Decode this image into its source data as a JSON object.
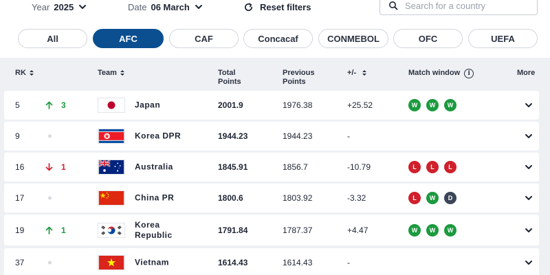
{
  "filters": {
    "year_label": "Year",
    "year_value": "2025",
    "date_label": "Date",
    "date_value": "06 March",
    "reset_label": "Reset filters",
    "search_placeholder": "Search for a country"
  },
  "tabs": [
    {
      "label": "All",
      "active": false
    },
    {
      "label": "AFC",
      "active": true
    },
    {
      "label": "CAF",
      "active": false
    },
    {
      "label": "Concacaf",
      "active": false
    },
    {
      "label": "CONMEBOL",
      "active": false
    },
    {
      "label": "OFC",
      "active": false
    },
    {
      "label": "UEFA",
      "active": false
    }
  ],
  "columns": {
    "rank": "RK",
    "team": "Team",
    "total_1": "Total",
    "total_2": "Points",
    "prev_1": "Previous",
    "prev_2": "Points",
    "diff": "+/-",
    "match_window": "Match window",
    "more": "More"
  },
  "rows": [
    {
      "rank": "5",
      "move_dir": "up",
      "move": "3",
      "flag": "japan",
      "team": "Japan",
      "total": "2001.9",
      "previous": "1976.38",
      "diff": "+25.52",
      "results": [
        "W",
        "W",
        "W"
      ]
    },
    {
      "rank": "9",
      "move_dir": "none",
      "move": "",
      "flag": "korea-dpr",
      "team": "Korea DPR",
      "total": "1944.23",
      "previous": "1944.23",
      "diff": "-",
      "results": []
    },
    {
      "rank": "16",
      "move_dir": "down",
      "move": "1",
      "flag": "australia",
      "team": "Australia",
      "total": "1845.91",
      "previous": "1856.7",
      "diff": "-10.79",
      "results": [
        "L",
        "L",
        "L"
      ]
    },
    {
      "rank": "17",
      "move_dir": "none",
      "move": "",
      "flag": "china",
      "team": "China PR",
      "total": "1800.6",
      "previous": "1803.92",
      "diff": "-3.32",
      "results": [
        "L",
        "W",
        "D"
      ]
    },
    {
      "rank": "19",
      "move_dir": "up",
      "move": "1",
      "flag": "korea-republic",
      "team": "Korea Republic",
      "team_line1": "Korea",
      "team_line2": "Republic",
      "total": "1791.84",
      "previous": "1787.37",
      "diff": "+4.47",
      "results": [
        "W",
        "W",
        "W"
      ]
    },
    {
      "rank": "37",
      "move_dir": "none",
      "move": "",
      "flag": "vietnam",
      "team": "Vietnam",
      "total": "1614.43",
      "previous": "1614.43",
      "diff": "-",
      "results": []
    }
  ],
  "colors": {
    "accent": "#0b4f91",
    "win": "#1b9a3e",
    "loss": "#d0202b",
    "draw": "#3a4657",
    "up": "#1b9a3e",
    "down": "#d0202b"
  }
}
